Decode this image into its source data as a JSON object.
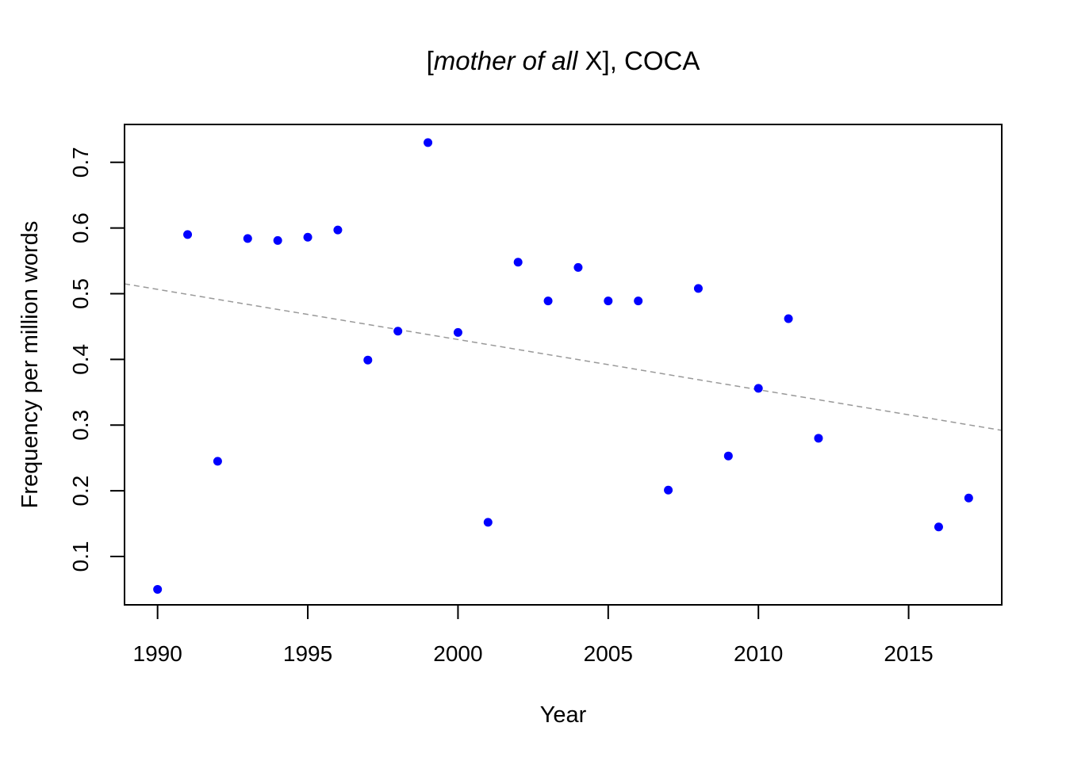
{
  "chart_data": {
    "type": "scatter",
    "title": {
      "prefix": "[",
      "italic": "mother of all",
      "suffix": " X], COCA"
    },
    "xlabel": "Year",
    "ylabel": "Frequency per million words",
    "xlim": [
      1988.9,
      2018.1
    ],
    "ylim": [
      0.0264,
      0.7576
    ],
    "xticks": [
      "1990",
      "1995",
      "2000",
      "2005",
      "2010",
      "2015"
    ],
    "yticks": [
      "0.1",
      "0.2",
      "0.3",
      "0.4",
      "0.5",
      "0.6",
      "0.7"
    ],
    "grid": false,
    "legend": "none",
    "series": [
      {
        "color": "#0000ff",
        "points": [
          {
            "x": 1990,
            "y": 0.05
          },
          {
            "x": 1991,
            "y": 0.59
          },
          {
            "x": 1992,
            "y": 0.245
          },
          {
            "x": 1993,
            "y": 0.584
          },
          {
            "x": 1994,
            "y": 0.581
          },
          {
            "x": 1995,
            "y": 0.586
          },
          {
            "x": 1996,
            "y": 0.597
          },
          {
            "x": 1997,
            "y": 0.399
          },
          {
            "x": 1998,
            "y": 0.443
          },
          {
            "x": 1999,
            "y": 0.73
          },
          {
            "x": 2000,
            "y": 0.441
          },
          {
            "x": 2001,
            "y": 0.152
          },
          {
            "x": 2002,
            "y": 0.548
          },
          {
            "x": 2003,
            "y": 0.489
          },
          {
            "x": 2004,
            "y": 0.54
          },
          {
            "x": 2005,
            "y": 0.489
          },
          {
            "x": 2006,
            "y": 0.489
          },
          {
            "x": 2007,
            "y": 0.201
          },
          {
            "x": 2008,
            "y": 0.508
          },
          {
            "x": 2009,
            "y": 0.253
          },
          {
            "x": 2010,
            "y": 0.356
          },
          {
            "x": 2011,
            "y": 0.462
          },
          {
            "x": 2012,
            "y": 0.28
          },
          {
            "x": 2016,
            "y": 0.145
          },
          {
            "x": 2017,
            "y": 0.189
          }
        ]
      }
    ],
    "trend_line": {
      "style": "dashed",
      "color": "#999999",
      "start": {
        "x": 1988.9,
        "y": 0.515
      },
      "end": {
        "x": 2018.1,
        "y": 0.292
      }
    }
  }
}
